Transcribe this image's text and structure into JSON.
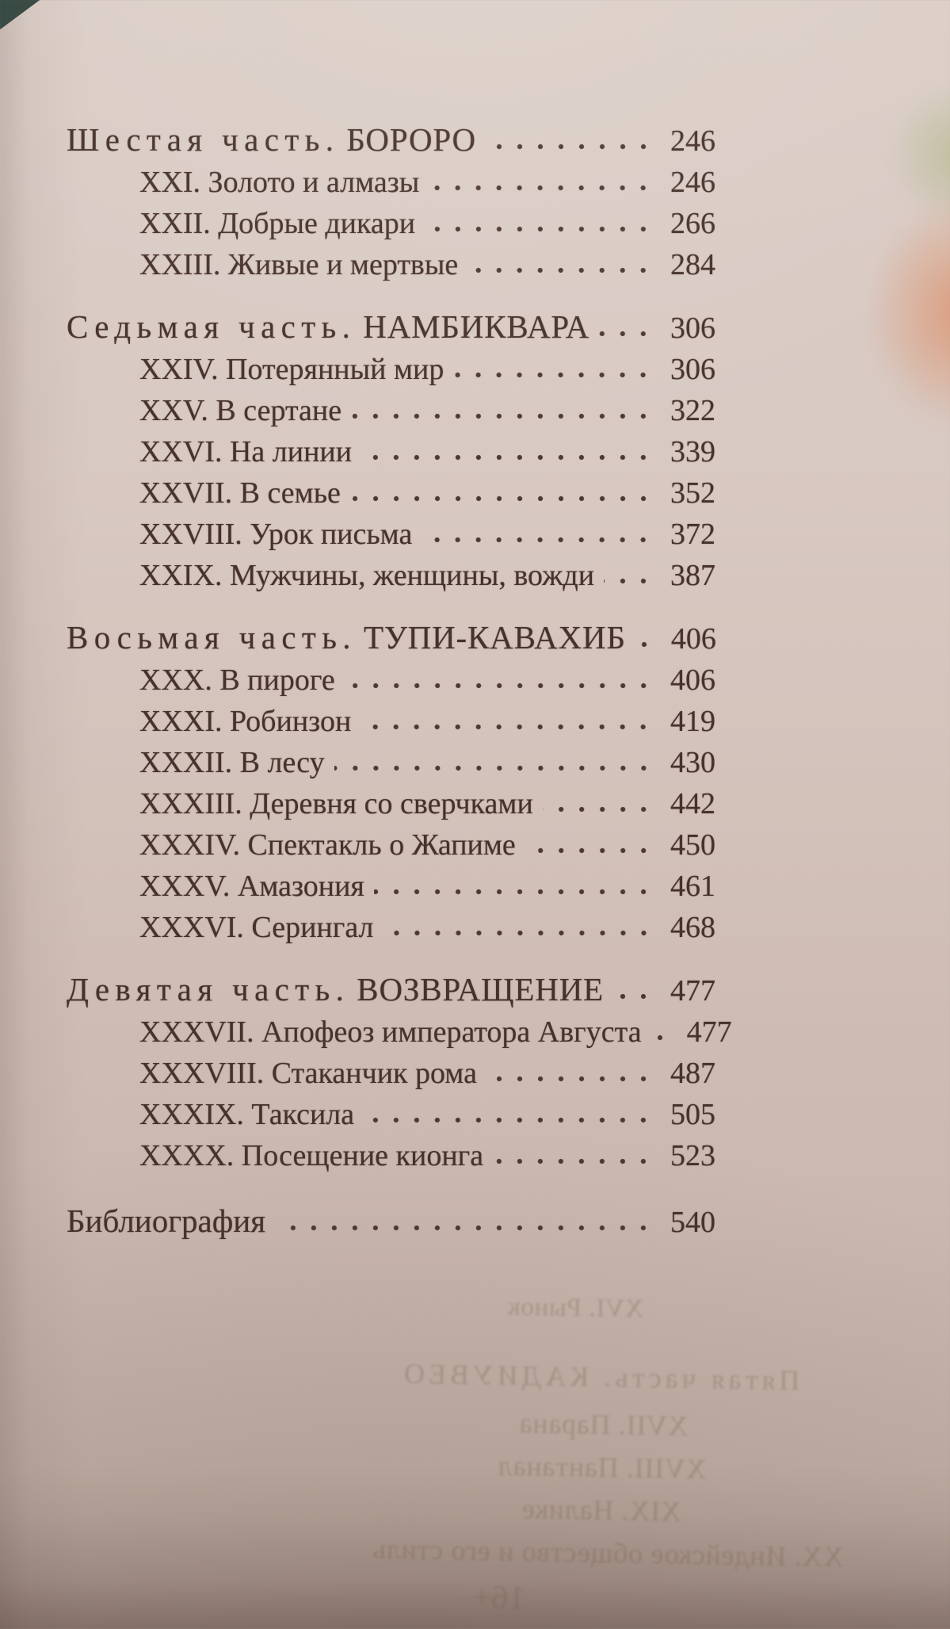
{
  "toc": {
    "rows": [
      {
        "type": "part",
        "prefix": "Шестая часть.",
        "name": "БОРОРО",
        "page": "246"
      },
      {
        "type": "chapter",
        "title": "XXI. Золото и алмазы",
        "page": "246"
      },
      {
        "type": "chapter",
        "title": "XXII. Добрые дикари",
        "page": "266"
      },
      {
        "type": "chapter",
        "title": "XXIII. Живые и мертвые",
        "page": "284"
      },
      {
        "type": "part",
        "prefix": "Седьмая часть.",
        "name": "НАМБИКВАРА",
        "page": "306"
      },
      {
        "type": "chapter",
        "title": "XXIV. Потерянный мир",
        "page": "306"
      },
      {
        "type": "chapter",
        "title": "XXV. В сертане",
        "page": "322"
      },
      {
        "type": "chapter",
        "title": "XXVI. На линии",
        "page": "339"
      },
      {
        "type": "chapter",
        "title": "XXVII. В семье",
        "page": "352"
      },
      {
        "type": "chapter",
        "title": "XXVIII. Урок письма",
        "page": "372"
      },
      {
        "type": "chapter",
        "title": "XXIX. Мужчины, женщины, вожди",
        "page": "387"
      },
      {
        "type": "part",
        "prefix": "Восьмая часть.",
        "name": "ТУПИ-КАВАХИБ",
        "page": "406"
      },
      {
        "type": "chapter",
        "title": "XXX. В пироге",
        "page": "406"
      },
      {
        "type": "chapter",
        "title": "XXXI. Робинзон",
        "page": "419"
      },
      {
        "type": "chapter",
        "title": "XXXII. В лесу",
        "page": "430"
      },
      {
        "type": "chapter",
        "title": "XXXIII. Деревня со сверчками",
        "page": "442"
      },
      {
        "type": "chapter",
        "title": "XXXIV. Спектакль о Жапиме",
        "page": "450"
      },
      {
        "type": "chapter",
        "title": "XXXV. Амазония",
        "page": "461"
      },
      {
        "type": "chapter",
        "title": "XXXVI. Серингал",
        "page": "468"
      },
      {
        "type": "part",
        "prefix": "Девятая часть.",
        "name": "ВОЗВРАЩЕНИЕ",
        "page": "477"
      },
      {
        "type": "chapter",
        "title": "XXXVII. Апофеоз императора Августа",
        "page": "477"
      },
      {
        "type": "chapter",
        "title": "XXXVIII. Стаканчик рома",
        "page": "487"
      },
      {
        "type": "chapter",
        "title": "XXXIX. Таксила",
        "page": "505"
      },
      {
        "type": "chapter",
        "title": "XXXX. Посещение кионга",
        "page": "523"
      },
      {
        "type": "root",
        "title": "Библиография",
        "page": "540"
      }
    ]
  },
  "ghost": {
    "lines": [
      "XVI. Рынок",
      "Пятая часть. КАДИУВЕО",
      "XVII. Парана",
      "XVIII. Пантанал",
      "XIX. Налике",
      "XX. Индейское общество и его стиль"
    ],
    "age_mark": "16+"
  },
  "colors": {
    "paper_light": "#dbcec7",
    "paper_dark": "#b8a59b",
    "ink": "#46322b",
    "edge_fringe_green": "#9eaa69",
    "edge_fringe_orange": "#dd733e",
    "corner_shadow": "#32443d"
  }
}
